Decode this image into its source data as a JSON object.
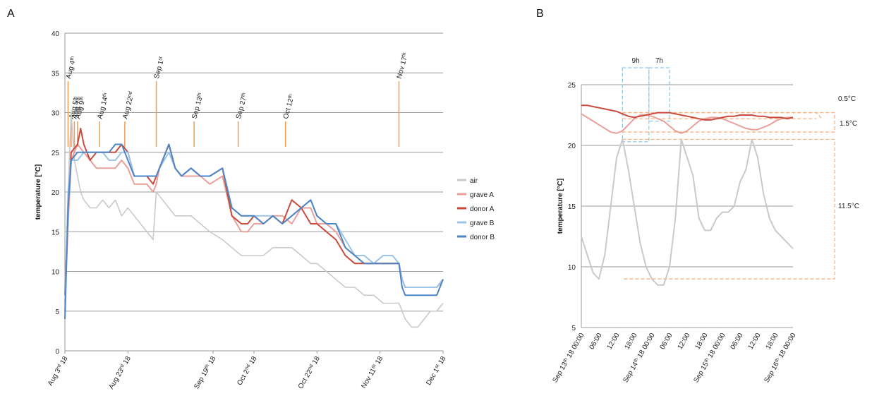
{
  "chart_data": [
    {
      "panel": "A",
      "type": "line",
      "ylabel": "temperature [°C]",
      "ylim": [
        0,
        40
      ],
      "yticks": [
        0,
        5,
        10,
        15,
        20,
        25,
        30,
        35,
        40
      ],
      "xlim_days": [
        0,
        120
      ],
      "xticks": [
        {
          "t": 0,
          "label": "Aug 3rd 18"
        },
        {
          "t": 20,
          "label": "Aug 23rd 18"
        },
        {
          "t": 47,
          "label": "Sep 19th 18"
        },
        {
          "t": 60,
          "label": "Oct 2nd 18"
        },
        {
          "t": 80,
          "label": "Oct 22nd 18"
        },
        {
          "t": 100,
          "label": "Nov 11th 18"
        },
        {
          "t": 120,
          "label": "Dec 1st 18"
        }
      ],
      "events": [
        {
          "t": 1,
          "label": "Aug 4th",
          "big": true
        },
        {
          "t": 2,
          "label": "Aug 5th",
          "big": false
        },
        {
          "t": 3,
          "label": "Aug 7th",
          "big": false
        },
        {
          "t": 4,
          "label": "Aug 9th",
          "big": false
        },
        {
          "t": 11,
          "label": "Aug 14th",
          "big": false
        },
        {
          "t": 19,
          "label": "Aug 22nd",
          "big": false
        },
        {
          "t": 29,
          "label": "Sep 1st",
          "big": true
        },
        {
          "t": 41,
          "label": "Sep 13th",
          "big": false
        },
        {
          "t": 55,
          "label": "Sep 27th",
          "big": false
        },
        {
          "t": 70,
          "label": "Oct 12th",
          "big": false
        },
        {
          "t": 106,
          "label": "Nov 17th",
          "big": true
        }
      ],
      "legend": [
        "air",
        "grave A",
        "donor A",
        "grave B",
        "donor B"
      ],
      "series": [
        {
          "name": "air",
          "color": "#c9c9c9",
          "x": [
            0,
            1,
            2,
            3,
            4,
            5,
            6,
            8,
            10,
            12,
            14,
            16,
            18,
            20,
            22,
            24,
            26,
            28,
            29,
            31,
            33,
            35,
            37,
            40,
            43,
            46,
            50,
            53,
            56,
            60,
            63,
            66,
            69,
            72,
            75,
            78,
            80,
            83,
            86,
            89,
            92,
            95,
            98,
            101,
            104,
            106,
            108,
            110,
            112,
            114,
            116,
            118,
            120
          ],
          "y": [
            5,
            20,
            30,
            24,
            22,
            20,
            19,
            18,
            18,
            19,
            18,
            19,
            17,
            18,
            17,
            16,
            15,
            14,
            20,
            19,
            18,
            17,
            17,
            17,
            16,
            15,
            14,
            13,
            12,
            12,
            12,
            13,
            13,
            13,
            12,
            11,
            11,
            10,
            9,
            8,
            8,
            7,
            7,
            6,
            6,
            6,
            4,
            3,
            3,
            4,
            5,
            5,
            6
          ]
        },
        {
          "name": "grave A",
          "color": "#e9a09a",
          "x": [
            0,
            1,
            2,
            4,
            6,
            8,
            10,
            12,
            14,
            16,
            18,
            20,
            22,
            24,
            26,
            28,
            29,
            30,
            33,
            35,
            37,
            40,
            43,
            46,
            50,
            53,
            56,
            58,
            60,
            63,
            66,
            69,
            72,
            75,
            78,
            80,
            83,
            86,
            89,
            92,
            95,
            98,
            101,
            104,
            106,
            107,
            108,
            110,
            112,
            114,
            116,
            118,
            120
          ],
          "y": [
            6,
            16,
            24,
            26,
            25,
            24,
            23,
            23,
            23,
            23,
            24,
            23,
            21,
            21,
            21,
            20,
            21,
            23,
            26,
            23,
            22,
            22,
            22,
            21,
            22,
            17,
            15,
            15,
            16,
            16,
            17,
            17,
            16,
            18,
            18,
            16,
            16,
            15,
            13,
            12,
            11,
            11,
            11,
            11,
            11,
            9,
            8,
            8,
            8,
            8,
            8,
            8,
            9
          ]
        },
        {
          "name": "donor A",
          "color": "#c94a3c",
          "x": [
            0,
            1,
            2,
            4,
            5,
            6,
            8,
            10,
            12,
            14,
            16,
            18,
            20,
            22,
            24,
            26,
            28,
            29,
            30,
            33,
            35,
            37,
            40,
            43,
            46,
            50,
            53,
            56,
            58,
            60,
            63,
            66,
            69,
            72,
            75,
            78,
            80,
            83,
            86,
            89,
            92,
            95,
            98,
            101,
            104,
            106,
            107,
            108,
            110,
            112,
            114,
            116,
            118,
            120
          ],
          "y": [
            7,
            18,
            25,
            26,
            28,
            26,
            24,
            25,
            25,
            25,
            25,
            26,
            25,
            22,
            22,
            22,
            21,
            22,
            23,
            26,
            23,
            22,
            23,
            22,
            22,
            23,
            17,
            16,
            16,
            17,
            16,
            17,
            16,
            19,
            18,
            16,
            16,
            15,
            14,
            12,
            11,
            11,
            11,
            11,
            11,
            11,
            9,
            8,
            8,
            8,
            8,
            8,
            8,
            9
          ]
        },
        {
          "name": "grave B",
          "color": "#9dc3e6",
          "x": [
            0,
            1,
            2,
            4,
            6,
            8,
            10,
            12,
            14,
            16,
            18,
            20,
            22,
            24,
            26,
            28,
            29,
            30,
            33,
            35,
            37,
            40,
            43,
            46,
            50,
            53,
            56,
            58,
            60,
            63,
            66,
            69,
            72,
            75,
            78,
            80,
            83,
            86,
            89,
            92,
            95,
            98,
            101,
            104,
            106,
            107,
            108,
            110,
            112,
            114,
            116,
            118,
            120
          ],
          "y": [
            5,
            20,
            24,
            24,
            25,
            25,
            25,
            25,
            24,
            24,
            25,
            25,
            22,
            22,
            22,
            22,
            22,
            23,
            25,
            23,
            22,
            23,
            22,
            22,
            23,
            18,
            17,
            17,
            17,
            17,
            17,
            16,
            17,
            18,
            19,
            17,
            16,
            16,
            14,
            12,
            12,
            11,
            12,
            12,
            11,
            9,
            8,
            8,
            8,
            8,
            8,
            8,
            9
          ]
        },
        {
          "name": "donor B",
          "color": "#4e85c4",
          "x": [
            0,
            1,
            2,
            4,
            6,
            8,
            10,
            12,
            14,
            16,
            18,
            20,
            22,
            24,
            26,
            28,
            29,
            30,
            33,
            35,
            37,
            40,
            43,
            46,
            50,
            53,
            56,
            58,
            60,
            63,
            66,
            69,
            72,
            75,
            78,
            80,
            83,
            86,
            89,
            92,
            95,
            98,
            101,
            104,
            106,
            107,
            108,
            110,
            112,
            114,
            116,
            118,
            120
          ],
          "y": [
            4,
            18,
            24,
            25,
            25,
            25,
            25,
            25,
            25,
            26,
            26,
            24,
            22,
            22,
            22,
            22,
            22,
            23,
            26,
            23,
            22,
            23,
            22,
            22,
            23,
            18,
            17,
            17,
            17,
            16,
            17,
            16,
            17,
            18,
            19,
            17,
            16,
            16,
            13,
            12,
            11,
            11,
            11,
            11,
            11,
            8,
            7,
            7,
            7,
            7,
            7,
            7,
            9
          ]
        }
      ]
    },
    {
      "panel": "B",
      "type": "line",
      "ylabel": "temperature [°C]",
      "ylim": [
        5,
        25
      ],
      "yticks": [
        5,
        10,
        15,
        20,
        25
      ],
      "xlim_hours": [
        0,
        72
      ],
      "xticks": [
        {
          "h": 0,
          "label": "Sep 13th 18  00:00"
        },
        {
          "h": 6,
          "label": "06:00"
        },
        {
          "h": 12,
          "label": "12:00"
        },
        {
          "h": 18,
          "label": "18:00"
        },
        {
          "h": 24,
          "label": "Sep 14th 18  00:00"
        },
        {
          "h": 30,
          "label": "06:00"
        },
        {
          "h": 36,
          "label": "12:00"
        },
        {
          "h": 42,
          "label": "18:00"
        },
        {
          "h": 48,
          "label": "Sep 15th 18  00:00"
        },
        {
          "h": 54,
          "label": "06:00"
        },
        {
          "h": 60,
          "label": "12:00"
        },
        {
          "h": 66,
          "label": "18:00"
        },
        {
          "h": 72,
          "label": "Sep 16th 18  00:00"
        }
      ],
      "annotations": {
        "lag_labels": [
          "9h",
          "7h"
        ],
        "range_labels": [
          "0.5°C",
          "1.5°C",
          "11.5°C"
        ]
      },
      "series": [
        {
          "name": "air",
          "color": "#c9c9c9",
          "x": [
            0,
            2,
            4,
            6,
            8,
            10,
            12,
            14,
            16,
            18,
            20,
            22,
            24,
            26,
            28,
            30,
            32,
            34,
            36,
            38,
            40,
            42,
            44,
            46,
            48,
            50,
            52,
            54,
            56,
            58,
            60,
            62,
            64,
            66,
            68,
            70,
            72
          ],
          "y": [
            12.5,
            11,
            9.5,
            9,
            11,
            15,
            19,
            20.5,
            18,
            15,
            12,
            10,
            9,
            8.5,
            8.5,
            10,
            14,
            20.5,
            19,
            17.5,
            14,
            13,
            13,
            14,
            14.5,
            14.5,
            15,
            17,
            18,
            20.5,
            19,
            16,
            14,
            13,
            12.5,
            12,
            11.5
          ]
        },
        {
          "name": "grave A",
          "color": "#e9a09a",
          "x": [
            0,
            2,
            4,
            6,
            8,
            10,
            12,
            14,
            16,
            18,
            20,
            22,
            24,
            26,
            28,
            30,
            32,
            34,
            36,
            38,
            40,
            42,
            44,
            46,
            48,
            50,
            52,
            54,
            56,
            58,
            60,
            62,
            64,
            66,
            68,
            70,
            72
          ],
          "y": [
            22.6,
            22.3,
            22,
            21.7,
            21.4,
            21.1,
            21,
            21.2,
            21.7,
            22.2,
            22.5,
            22.5,
            22.4,
            22.2,
            22,
            21.6,
            21.2,
            21,
            21.2,
            21.6,
            22,
            22.2,
            22.3,
            22.3,
            22.2,
            22,
            21.8,
            21.6,
            21.4,
            21.3,
            21.3,
            21.5,
            21.7,
            22,
            22.2,
            22.3,
            22.3
          ]
        },
        {
          "name": "donor A",
          "color": "#c94a3c",
          "x": [
            0,
            2,
            4,
            6,
            8,
            10,
            12,
            14,
            16,
            18,
            20,
            22,
            24,
            26,
            28,
            30,
            32,
            34,
            36,
            38,
            40,
            42,
            44,
            46,
            48,
            50,
            52,
            54,
            56,
            58,
            60,
            62,
            64,
            66,
            68,
            70,
            72
          ],
          "y": [
            23.3,
            23.3,
            23.2,
            23.1,
            23,
            22.9,
            22.8,
            22.6,
            22.4,
            22.3,
            22.4,
            22.5,
            22.6,
            22.7,
            22.7,
            22.7,
            22.6,
            22.5,
            22.4,
            22.3,
            22.2,
            22.1,
            22.1,
            22.2,
            22.3,
            22.4,
            22.4,
            22.5,
            22.5,
            22.5,
            22.4,
            22.4,
            22.3,
            22.3,
            22.3,
            22.2,
            22.3
          ]
        }
      ]
    }
  ],
  "panel_labels": [
    "A",
    "B"
  ],
  "legend": {
    "items": [
      {
        "label": "air",
        "color": "#c9c9c9"
      },
      {
        "label": "grave A",
        "color": "#e9a09a"
      },
      {
        "label": "donor A",
        "color": "#c94a3c"
      },
      {
        "label": "grave B",
        "color": "#9dc3e6"
      },
      {
        "label": "donor B",
        "color": "#4e85c4"
      }
    ]
  },
  "colors": {
    "event_line": "#f0a25a",
    "lag_box": "#8ecae6",
    "range_box": "#f4b183"
  }
}
